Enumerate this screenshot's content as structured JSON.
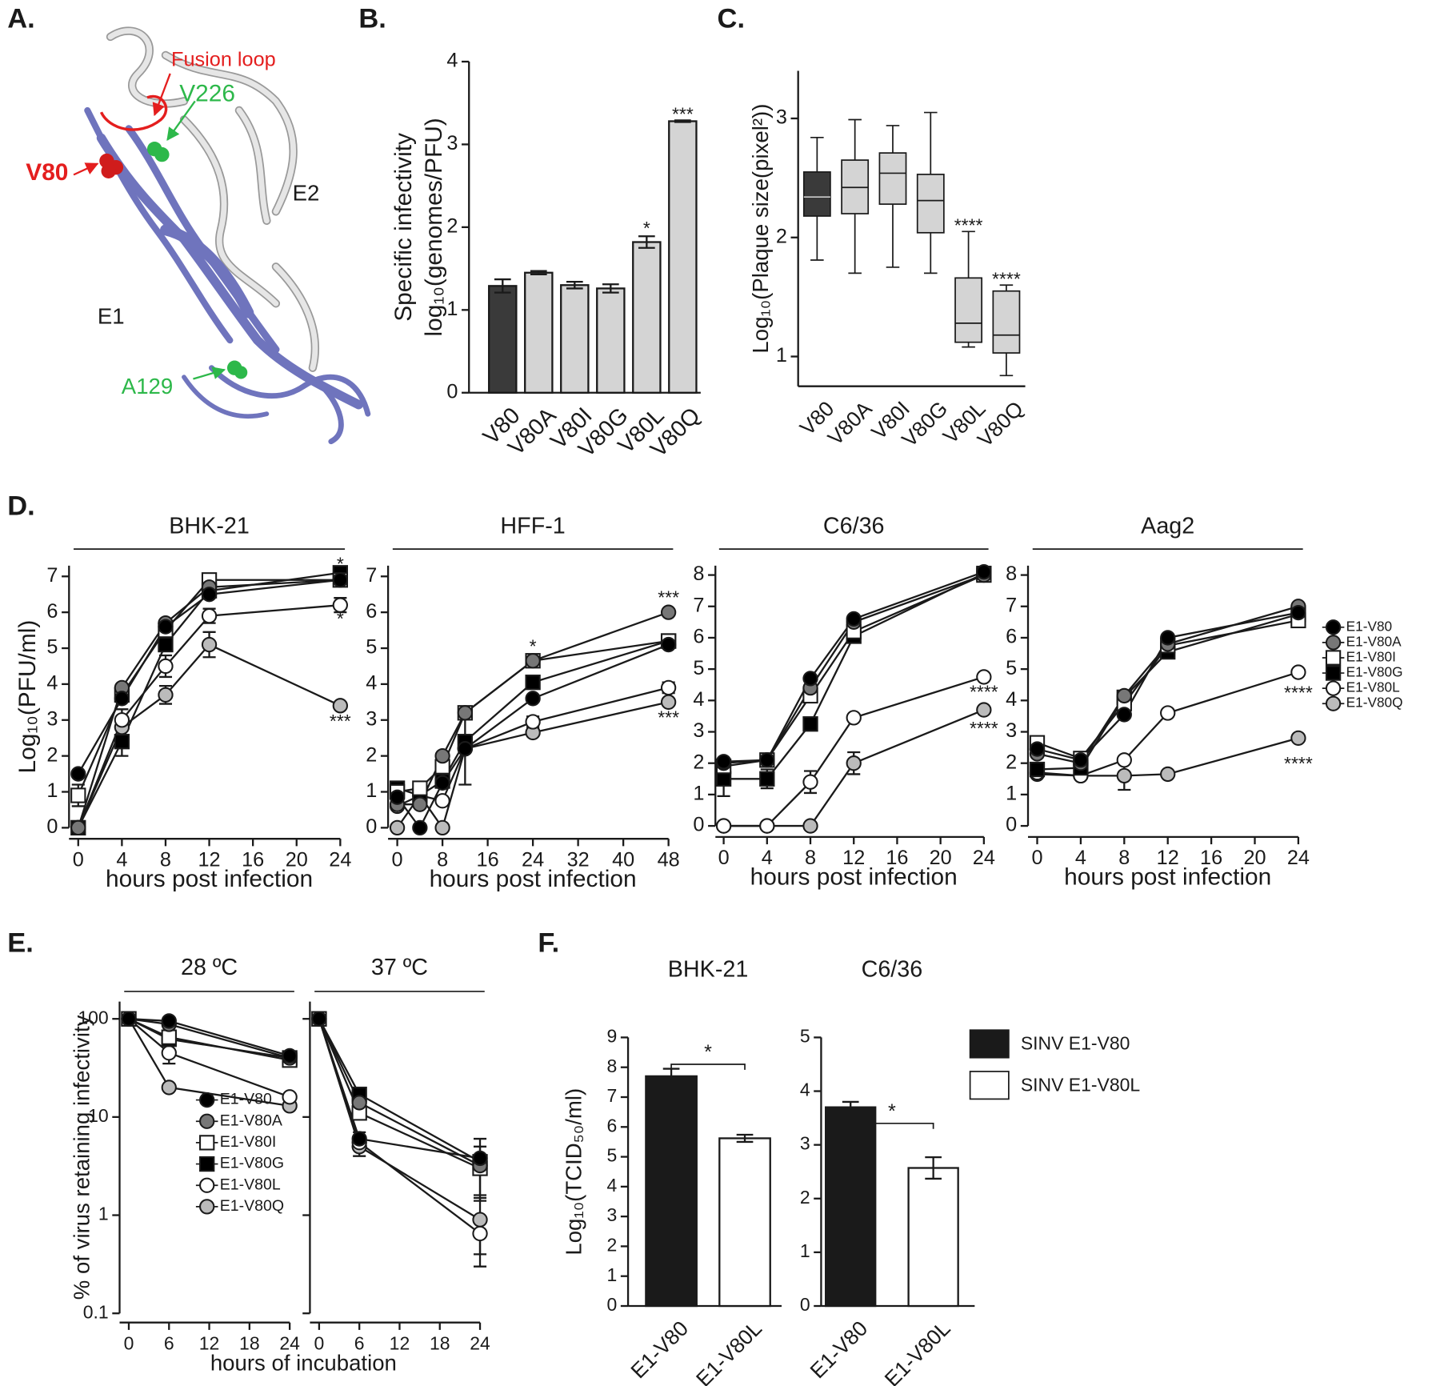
{
  "structure": {
    "panel_label": "A.",
    "labels": {
      "fusion_loop": "Fusion loop",
      "v226": "V226",
      "v80": "V80",
      "e2": "E2",
      "e1": "E1",
      "a129": "A129"
    }
  },
  "chart_data": [
    {
      "type": "bar",
      "panel_label": "B.",
      "ylabel": [
        "Specific infectivity",
        "log₁₀(genomes/PFU)"
      ],
      "categories": [
        "V80",
        "V80A",
        "V80I",
        "V80G",
        "V80L",
        "V80Q"
      ],
      "values": [
        1.29,
        1.45,
        1.3,
        1.26,
        1.82,
        3.28
      ],
      "errors": [
        0.08,
        0.02,
        0.04,
        0.05,
        0.07,
        0.01
      ],
      "colors": [
        "#3a3a3a",
        "#d4d4d4",
        "#d4d4d4",
        "#d4d4d4",
        "#d4d4d4",
        "#d4d4d4"
      ],
      "ylim": [
        0,
        4
      ],
      "yticks": [
        0,
        1,
        2,
        3,
        4
      ],
      "annotations": [
        {
          "text": "*",
          "x": "V80L",
          "y": 2.0
        },
        {
          "text": "***",
          "x": "V80Q",
          "y": 3.38
        }
      ]
    },
    {
      "type": "box",
      "panel_label": "C.",
      "ylabel": "Log₁₀(Plaque size(pixel²))",
      "categories": [
        "V80",
        "V80A",
        "V80I",
        "V80G",
        "V80L",
        "V80Q"
      ],
      "boxes": [
        {
          "whislo": 1.81,
          "q1": 2.18,
          "med": 2.34,
          "q3": 2.55,
          "whishi": 2.84
        },
        {
          "whislo": 1.7,
          "q1": 2.2,
          "med": 2.42,
          "q3": 2.65,
          "whishi": 2.99
        },
        {
          "whislo": 1.75,
          "q1": 2.28,
          "med": 2.54,
          "q3": 2.71,
          "whishi": 2.94
        },
        {
          "whislo": 1.7,
          "q1": 2.04,
          "med": 2.31,
          "q3": 2.53,
          "whishi": 3.05
        },
        {
          "whislo": 1.08,
          "q1": 1.12,
          "med": 1.28,
          "q3": 1.66,
          "whishi": 2.05
        },
        {
          "whislo": 0.84,
          "q1": 1.03,
          "med": 1.18,
          "q3": 1.55,
          "whishi": 1.6
        }
      ],
      "colors": [
        "#3a3a3a",
        "#d4d4d4",
        "#d4d4d4",
        "#d4d4d4",
        "#d4d4d4",
        "#d4d4d4"
      ],
      "ylim": [
        0.75,
        3.4
      ],
      "yticks": [
        1,
        2,
        3
      ],
      "annotations": [
        {
          "text": "****",
          "x": "V80L",
          "y": 2.11
        },
        {
          "text": "****",
          "x": "V80Q",
          "y": 1.66
        }
      ]
    },
    {
      "type": "line",
      "panel_label": "D.",
      "title": "BHK-21",
      "xlabel": "hours post infection",
      "ylabel": "Log₁₀(PFU/ml)",
      "x": [
        0,
        4,
        8,
        12,
        24
      ],
      "xlim": [
        0,
        24
      ],
      "xticks": [
        0,
        4,
        8,
        12,
        16,
        20,
        24
      ],
      "ylim": [
        0,
        7.3
      ],
      "yticks": [
        0,
        1,
        2,
        3,
        4,
        5,
        6,
        7
      ],
      "series": [
        {
          "color": "#000000",
          "marker": "circle",
          "values": [
            1.5,
            3.6,
            5.6,
            6.5,
            6.9
          ],
          "errors": [
            null,
            null,
            null,
            0.1,
            0.15
          ]
        },
        {
          "color": "#777777",
          "marker": "circle",
          "values": [
            0,
            3.9,
            5.7,
            6.7,
            6.9
          ]
        },
        {
          "color": "#ffffff",
          "marker": "square",
          "values": [
            0.9,
            3.7,
            5.5,
            6.9,
            6.9
          ],
          "errors": [
            0.3,
            null,
            null,
            0.1,
            null
          ]
        },
        {
          "color": "#000000",
          "marker": "square",
          "values": [
            0,
            2.4,
            5.1,
            6.6,
            7.1
          ],
          "errors": [
            null,
            0.4,
            null,
            null,
            null
          ]
        },
        {
          "color": "#ffffff",
          "marker": "circle",
          "values": [
            0,
            3.0,
            4.5,
            5.9,
            6.2
          ],
          "errors": [
            null,
            0.3,
            0.3,
            0.2,
            0.2
          ]
        },
        {
          "color": "#bbbbbb",
          "marker": "circle",
          "values": [
            0,
            2.8,
            3.7,
            5.1,
            3.4
          ],
          "errors": [
            null,
            null,
            0.25,
            0.35,
            null
          ]
        }
      ],
      "annotations": [
        {
          "text": "*",
          "x": 24,
          "y": 7.38
        },
        {
          "text": "*",
          "x": 24,
          "y": 5.85
        },
        {
          "text": "***",
          "x": 24,
          "y": 3.0
        }
      ]
    },
    {
      "type": "line",
      "title": "HFF-1",
      "xlabel": "hours post infection",
      "x": [
        0,
        4,
        8,
        12,
        24,
        48
      ],
      "xlim": [
        0,
        48
      ],
      "xticks": [
        0,
        8,
        16,
        24,
        32,
        40,
        48
      ],
      "ylim": [
        0,
        7.3
      ],
      "yticks": [
        0,
        1,
        2,
        3,
        4,
        5,
        6,
        7
      ],
      "series": [
        {
          "color": "#000000",
          "marker": "circle",
          "values": [
            0.85,
            0,
            1.25,
            2.2,
            3.6,
            5.1
          ],
          "errors": [
            null,
            null,
            null,
            1.0,
            null,
            null
          ]
        },
        {
          "color": "#777777",
          "marker": "circle",
          "values": [
            0.65,
            0.65,
            2.0,
            3.2,
            4.65,
            6.0
          ]
        },
        {
          "color": "#ffffff",
          "marker": "square",
          "values": [
            1.0,
            1.1,
            1.7,
            3.2,
            4.65,
            5.2
          ]
        },
        {
          "color": "#000000",
          "marker": "square",
          "values": [
            1.1,
            0.9,
            1.3,
            2.4,
            4.05,
            5.2
          ]
        },
        {
          "color": "#ffffff",
          "marker": "circle",
          "values": [
            0.6,
            0.9,
            0.75,
            2.2,
            2.95,
            3.9
          ],
          "errors": [
            null,
            null,
            null,
            null,
            0.15,
            0.15
          ]
        },
        {
          "color": "#bbbbbb",
          "marker": "circle",
          "values": [
            0,
            0.9,
            0,
            2.2,
            2.65,
            3.5
          ]
        }
      ],
      "annotations": [
        {
          "text": "*",
          "x": 24,
          "y": 5.08
        },
        {
          "text": "***",
          "x": 48,
          "y": 6.44
        },
        {
          "text": "***",
          "x": 48,
          "y": 3.1
        }
      ]
    },
    {
      "type": "line",
      "title": "C6/36",
      "xlabel": "hours post infection",
      "x": [
        0,
        4,
        8,
        12,
        24
      ],
      "xlim": [
        0,
        24
      ],
      "xticks": [
        0,
        4,
        8,
        12,
        16,
        20,
        24
      ],
      "ylim": [
        0,
        8.3
      ],
      "yticks": [
        0,
        1,
        2,
        3,
        4,
        5,
        6,
        7,
        8
      ],
      "series": [
        {
          "color": "#000000",
          "marker": "circle",
          "values": [
            2.05,
            2.1,
            4.7,
            6.6,
            8.1
          ]
        },
        {
          "color": "#777777",
          "marker": "circle",
          "values": [
            2.0,
            2.1,
            4.4,
            6.5,
            8.0
          ]
        },
        {
          "color": "#ffffff",
          "marker": "square",
          "values": [
            1.9,
            2.1,
            4.15,
            6.2,
            8.0
          ]
        },
        {
          "color": "#000000",
          "marker": "square",
          "values": [
            1.5,
            1.5,
            3.25,
            6.05,
            8.05
          ],
          "errors": [
            0.55,
            0.3,
            null,
            null,
            null
          ]
        },
        {
          "color": "#ffffff",
          "marker": "circle",
          "values": [
            0,
            0,
            1.4,
            3.45,
            4.75
          ],
          "errors": [
            null,
            null,
            0.35,
            null,
            null
          ]
        },
        {
          "color": "#bbbbbb",
          "marker": "circle",
          "values": [
            0,
            0,
            0,
            2.0,
            3.7
          ],
          "errors": [
            null,
            null,
            null,
            0.35,
            null
          ]
        }
      ],
      "annotations": [
        {
          "text": "****",
          "x": 24,
          "y": 4.3
        },
        {
          "text": "****",
          "x": 24,
          "y": 3.15
        }
      ]
    },
    {
      "type": "line",
      "title": "Aag2",
      "xlabel": "hours post infection",
      "legend": "right",
      "x": [
        0,
        4,
        8,
        12,
        24
      ],
      "xlim": [
        0,
        24
      ],
      "xticks": [
        0,
        4,
        8,
        12,
        16,
        20,
        24
      ],
      "ylim": [
        0,
        8.3
      ],
      "yticks": [
        0,
        1,
        2,
        3,
        4,
        5,
        6,
        7,
        8
      ],
      "series": [
        {
          "name": "E1-V80",
          "color": "#000000",
          "marker": "circle",
          "values": [
            2.45,
            2.1,
            3.55,
            6.0,
            6.8
          ]
        },
        {
          "name": "E1-V80A",
          "color": "#777777",
          "marker": "circle",
          "values": [
            2.3,
            2.0,
            4.15,
            5.8,
            7.0
          ]
        },
        {
          "name": "E1-V80I",
          "color": "#ffffff",
          "marker": "square",
          "values": [
            2.65,
            2.15,
            3.9,
            5.75,
            6.55
          ]
        },
        {
          "name": "E1-V80G",
          "color": "#000000",
          "marker": "square",
          "values": [
            1.8,
            1.85,
            4.1,
            5.55,
            6.75
          ],
          "errors": [
            null,
            0.25,
            null,
            null,
            null
          ]
        },
        {
          "name": "E1-V80L",
          "color": "#ffffff",
          "marker": "circle",
          "values": [
            1.7,
            1.6,
            2.1,
            3.6,
            4.9
          ]
        },
        {
          "name": "E1-V80Q",
          "color": "#bbbbbb",
          "marker": "circle",
          "values": [
            1.65,
            1.6,
            1.6,
            1.65,
            2.8
          ],
          "errors": [
            null,
            null,
            0.45,
            null,
            null
          ]
        }
      ],
      "annotations": [
        {
          "text": "****",
          "x": 24,
          "y": 4.28
        },
        {
          "text": "****",
          "x": 24,
          "y": 2.02
        }
      ]
    },
    {
      "type": "line",
      "panel_label": "E.",
      "title": "28 ºC",
      "xlabel": "hours of incubation",
      "ylabel": "% of virus retaining infectivity",
      "log_scale": true,
      "legend": "lower right",
      "x": [
        0,
        6,
        24
      ],
      "xlim": [
        0,
        24
      ],
      "xticks": [
        0,
        6,
        12,
        18,
        24
      ],
      "ylim": [
        0.1,
        150
      ],
      "yticks": [
        0.1,
        1,
        10,
        100
      ],
      "series": [
        {
          "name": "E1-V80",
          "color": "#000000",
          "marker": "circle",
          "values": [
            100,
            95,
            42
          ]
        },
        {
          "name": "E1-V80A",
          "color": "#777777",
          "marker": "circle",
          "values": [
            100,
            88,
            40
          ]
        },
        {
          "name": "E1-V80I",
          "color": "#ffffff",
          "marker": "square",
          "values": [
            100,
            65,
            38
          ]
        },
        {
          "name": "E1-V80G",
          "color": "#000000",
          "marker": "square",
          "values": [
            100,
            62,
            40
          ]
        },
        {
          "name": "E1-V80L",
          "color": "#ffffff",
          "marker": "circle",
          "values": [
            100,
            45,
            16
          ],
          "errors": [
            null,
            10,
            null
          ]
        },
        {
          "name": "E1-V80Q",
          "color": "#bbbbbb",
          "marker": "circle",
          "values": [
            100,
            20,
            13
          ]
        }
      ]
    },
    {
      "type": "line",
      "title": "37 ºC",
      "log_scale": true,
      "x": [
        0,
        6,
        24
      ],
      "xlim": [
        0,
        24
      ],
      "xticks": [
        0,
        6,
        12,
        18,
        24
      ],
      "ylim": [
        0.1,
        150
      ],
      "series": [
        {
          "color": "#000000",
          "marker": "circle",
          "values": [
            100,
            6,
            3.8
          ],
          "errors": [
            null,
            null,
            2.2
          ]
        },
        {
          "color": "#777777",
          "marker": "circle",
          "values": [
            100,
            14,
            3.2
          ],
          "errors": [
            null,
            null,
            1.8
          ]
        },
        {
          "color": "#ffffff",
          "marker": "square",
          "values": [
            100,
            11,
            3.0
          ]
        },
        {
          "color": "#000000",
          "marker": "square",
          "values": [
            100,
            17,
            3.5
          ]
        },
        {
          "color": "#ffffff",
          "marker": "circle",
          "values": [
            100,
            5.5,
            0.65
          ],
          "errors": [
            null,
            1.5,
            0.25
          ]
        },
        {
          "color": "#bbbbbb",
          "marker": "circle",
          "values": [
            100,
            5.0,
            0.9
          ],
          "errors": [
            null,
            null,
            0.6
          ]
        }
      ]
    },
    {
      "type": "bar",
      "panel_label": "F.",
      "title": "BHK-21",
      "ylabel": "Log₁₀(TCID₅₀/ml)",
      "categories": [
        "E1-V80",
        "E1-V80L"
      ],
      "values": [
        7.7,
        5.62
      ],
      "errors": [
        0.25,
        0.12
      ],
      "colors": [
        "#1a1a1a",
        "#ffffff"
      ],
      "ylim": [
        0,
        9
      ],
      "yticks": [
        0,
        1,
        2,
        3,
        4,
        5,
        6,
        7,
        8,
        9
      ],
      "annotations": [
        {
          "text": "*",
          "y": 8.1
        }
      ]
    },
    {
      "type": "bar",
      "title": "C6/36",
      "legend": "right",
      "legend_labels": [
        "SINV E1-V80",
        "SINV E1-V80L"
      ],
      "categories": [
        "E1-V80",
        "E1-V80L"
      ],
      "values": [
        3.7,
        2.57
      ],
      "errors": [
        0.1,
        0.2
      ],
      "colors": [
        "#1a1a1a",
        "#ffffff"
      ],
      "ylim": [
        0,
        5
      ],
      "yticks": [
        0,
        1,
        2,
        3,
        4,
        5
      ],
      "annotations": [
        {
          "text": "*",
          "y": 3.4
        }
      ]
    }
  ]
}
